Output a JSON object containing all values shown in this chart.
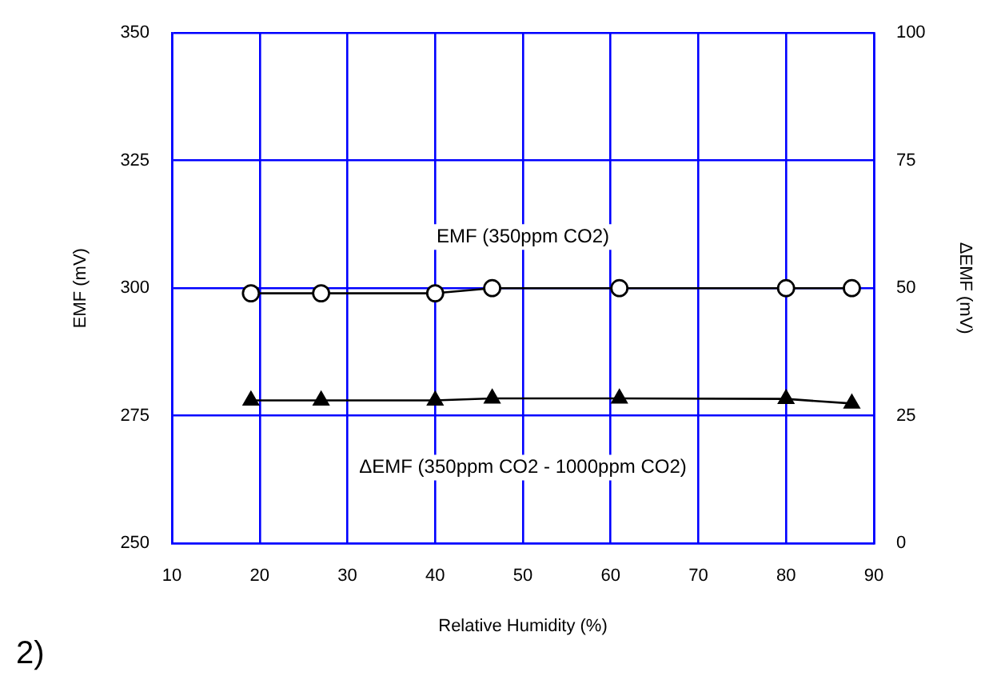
{
  "chart_data": {
    "type": "line",
    "xlabel": "Relative Humidity (%)",
    "ylabel": "EMF (mV)",
    "y2label": "ΔEMF (mV)",
    "x": [
      19,
      27,
      40,
      46.5,
      61,
      80,
      87.5
    ],
    "series": [
      {
        "name": "EMF (350ppm CO2)",
        "color": "#000000",
        "marker": "circle",
        "values": [
          299,
          299,
          299,
          300,
          300,
          300,
          300
        ]
      },
      {
        "name": "ΔEMF (350ppm CO2 - 1000ppm CO2)",
        "color": "#000000",
        "marker": "triangle",
        "axis": "y2",
        "values": [
          28,
          28,
          28,
          28.4,
          28.4,
          28.3,
          27.4
        ]
      }
    ],
    "xlim": [
      10,
      90
    ],
    "xticks": [
      10,
      20,
      30,
      40,
      50,
      60,
      70,
      80,
      90
    ],
    "ylim": [
      250,
      350
    ],
    "yticks": [
      250,
      275,
      300,
      325,
      350
    ],
    "y2lim": [
      0,
      100
    ],
    "y2ticks": [
      0,
      25,
      50,
      75,
      100
    ],
    "grid": true,
    "legend": false,
    "line_style": "solid",
    "annotations": [
      "2)"
    ]
  }
}
